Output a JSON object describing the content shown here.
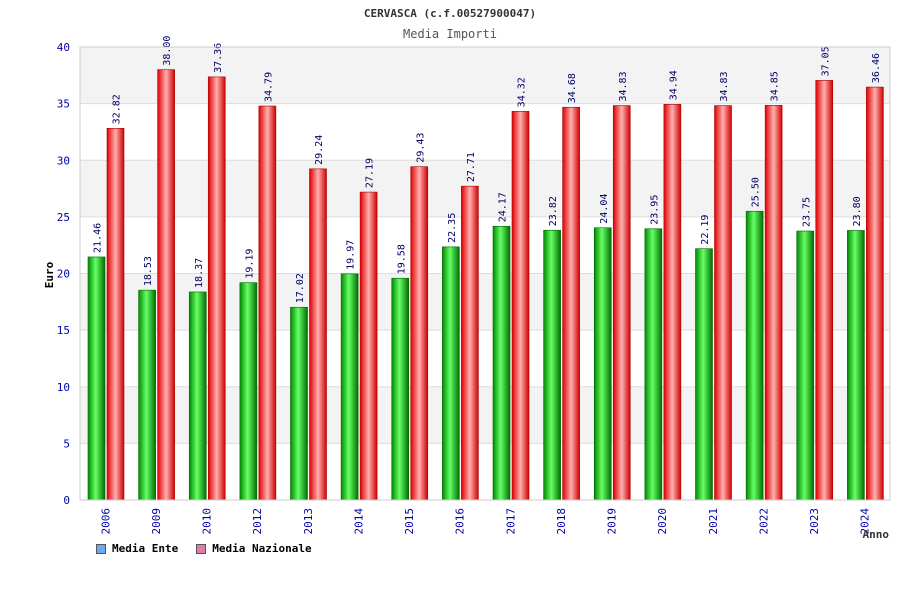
{
  "chart_data": {
    "type": "bar",
    "title": "CERVASCA (c.f.00527900047)",
    "subtitle": "Media Importi",
    "xlabel": "Anno",
    "ylabel": "Euro",
    "ylim": [
      0,
      40
    ],
    "yticks": [
      0,
      5,
      10,
      15,
      20,
      25,
      30,
      35,
      40
    ],
    "grid": true,
    "categories": [
      "2006",
      "2009",
      "2010",
      "2012",
      "2013",
      "2014",
      "2015",
      "2016",
      "2017",
      "2018",
      "2019",
      "2020",
      "2021",
      "2022",
      "2023",
      "2024"
    ],
    "series": [
      {
        "name": "Media Ente",
        "color": "#00cc00",
        "values": [
          21.46,
          18.53,
          18.37,
          19.19,
          17.02,
          19.97,
          19.58,
          22.35,
          24.17,
          23.82,
          24.04,
          23.95,
          22.19,
          25.5,
          23.75,
          23.8
        ],
        "labels": [
          "21.46",
          "18.53",
          "18.37",
          "19.19",
          "17.02",
          "19.97",
          "19.58",
          "22.35",
          "24.17",
          "23.82",
          "24.04",
          "23.95",
          "22.19",
          "25.50",
          "23.75",
          "23.80"
        ]
      },
      {
        "name": "Media Nazionale",
        "color": "#ff0000",
        "values": [
          32.82,
          38.0,
          37.36,
          34.79,
          29.24,
          27.19,
          29.43,
          27.71,
          34.32,
          34.68,
          34.83,
          34.94,
          34.83,
          34.85,
          37.05,
          36.46
        ],
        "labels": [
          "32.82",
          "38.00",
          "37.36",
          "34.79",
          "29.24",
          "27.19",
          "29.43",
          "27.71",
          "34.32",
          "34.68",
          "34.83",
          "34.94",
          "34.83",
          "34.85",
          "37.05",
          "36.46"
        ]
      }
    ],
    "legend": [
      {
        "label": "Media Ente",
        "swatch": "#6fa8f0"
      },
      {
        "label": "Media Nazionale",
        "swatch": "#e07aa8"
      }
    ],
    "legend_position": "bottom-left"
  }
}
